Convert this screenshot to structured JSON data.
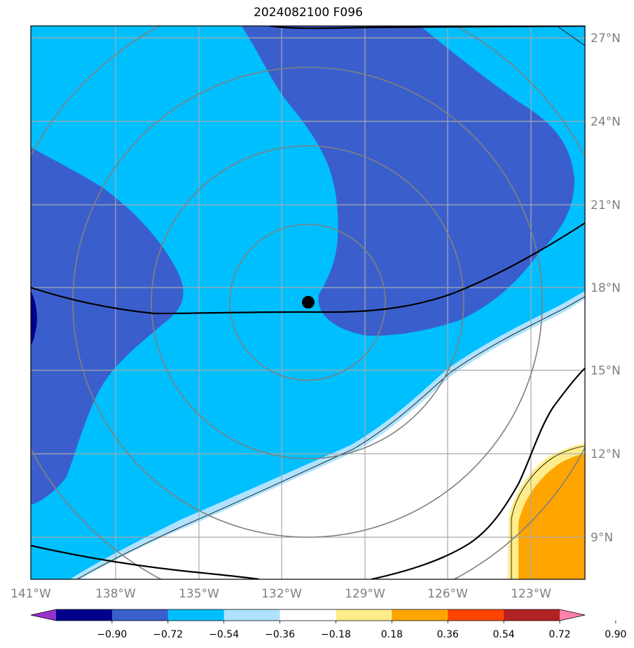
{
  "title": "2024082100 F096",
  "map": {
    "lon_labels": [
      "141°W",
      "138°W",
      "135°W",
      "132°W",
      "129°W",
      "126°W",
      "123°W"
    ],
    "lat_labels": [
      "27°N",
      "24°N",
      "21°N",
      "18°N",
      "15°N",
      "12°N",
      "9°N"
    ],
    "center_marker": {
      "lon": -131.0,
      "lat": 17.4
    },
    "range_rings": 4
  },
  "colorbar": {
    "ticks": [
      "−0.90",
      "−0.72",
      "−0.54",
      "−0.36",
      "−0.18",
      "0.18",
      "0.36",
      "0.54",
      "0.72",
      "0.90"
    ],
    "colors": [
      "#9932cc",
      "#00008b",
      "#3a5fcd",
      "#00bfff",
      "#b0e2ff",
      "#ffffff",
      "#ffec8b",
      "#ffa500",
      "#ff4500",
      "#b22222",
      "#ff82ab"
    ]
  }
}
